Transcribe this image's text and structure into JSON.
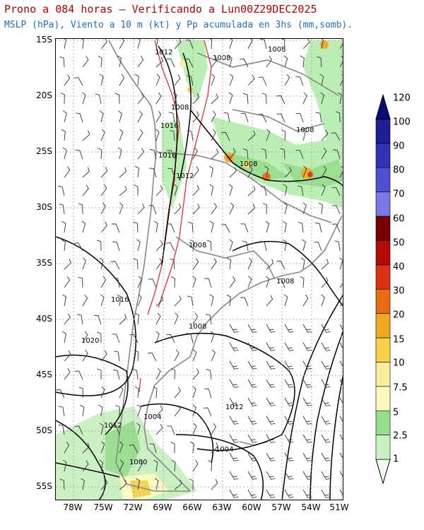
{
  "title": "Prono a 084 horas — Verificando a Lun00Z29DEC2025",
  "subtitle": "MSLP (hPa), Viento a 10 m (kt) y Pp acumulada en 3hs (mm,somb).",
  "lat_labels": [
    "15S",
    "20S",
    "25S",
    "30S",
    "35S",
    "40S",
    "45S",
    "50S",
    "55S"
  ],
  "lon_labels": [
    "78W",
    "75W",
    "72W",
    "69W",
    "66W",
    "63W",
    "60W",
    "57W",
    "54W",
    "51W"
  ],
  "isobar_labels": [
    "1012",
    "1008",
    "1008",
    "1008",
    "1016",
    "1016",
    "1012",
    "1008",
    "1008",
    "1008",
    "1016",
    "1008",
    "1020",
    "1008",
    "1004",
    "1012",
    "1004",
    "1000"
  ],
  "colorbar": {
    "levels": [
      "1",
      "2.5",
      "5",
      "7.5",
      "10",
      "15",
      "20",
      "30",
      "40",
      "50",
      "60",
      "70",
      "80",
      "90",
      "100",
      "120"
    ],
    "colors": [
      "#f2fbf2",
      "#c8f0c0",
      "#96dd8c",
      "#fafac0",
      "#f7ef9a",
      "#f5d24a",
      "#f0a820",
      "#e86c14",
      "#dc3212",
      "#b40a0a",
      "#780000",
      "#7878e6",
      "#5050d2",
      "#3232b4",
      "#1e1e96",
      "#0a0a78"
    ]
  },
  "colors": {
    "title": "#b00000",
    "subtitle": "#1f6fbf",
    "isobar": "#000000",
    "coast": "#888888",
    "contour_red": "#e03030"
  }
}
